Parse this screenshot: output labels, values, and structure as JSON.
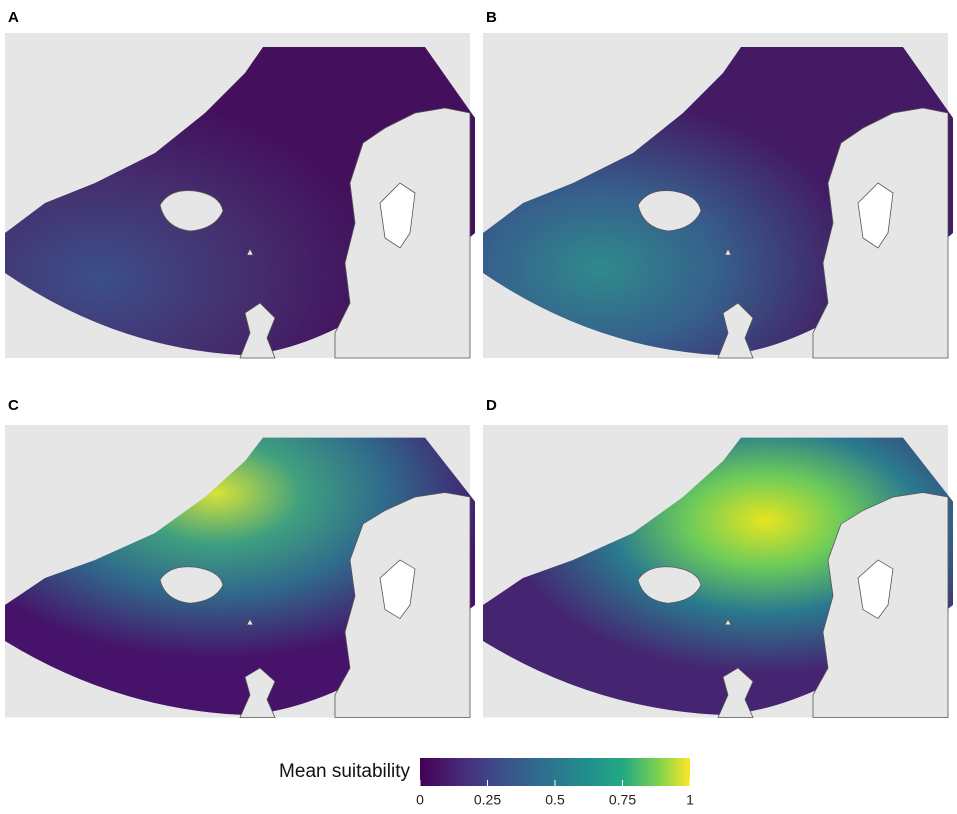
{
  "panels": [
    {
      "label": "A"
    },
    {
      "label": "B"
    },
    {
      "label": "C"
    },
    {
      "label": "D"
    }
  ],
  "legend": {
    "title": "Mean suitability",
    "lim": [
      0,
      1
    ],
    "ticks": [
      0,
      0.25,
      0.5,
      0.75,
      1
    ]
  }
}
